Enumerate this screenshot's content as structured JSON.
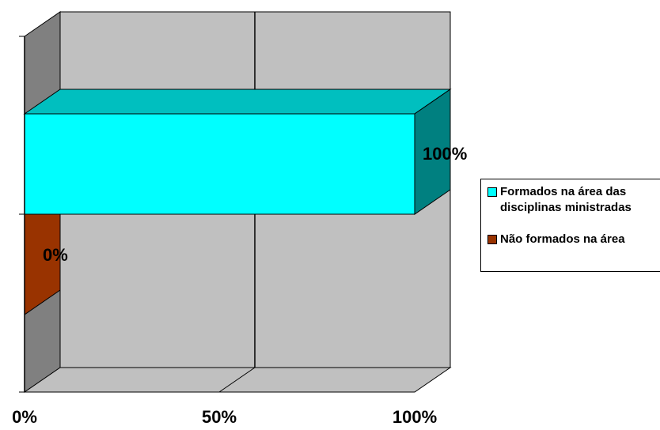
{
  "chart_data": {
    "type": "bar",
    "orientation": "horizontal",
    "three_d": true,
    "categories": [
      "Formados na área das disciplinas ministradas",
      "Não formados na área"
    ],
    "values": [
      100,
      0
    ],
    "value_unit": "%",
    "data_labels": [
      "100%",
      "0%"
    ],
    "xlim": [
      0,
      100
    ],
    "xticks": [
      "0%",
      "50%",
      "100%"
    ],
    "grid": true,
    "legend": "right",
    "title": "",
    "xlabel": "",
    "ylabel": "",
    "series": [
      {
        "name": "Formados na área das\ndisciplinas ministradas",
        "value": 100,
        "label": "100%",
        "color": "#00ffff"
      },
      {
        "name": "Não formados na área",
        "value": 0,
        "label": "0%",
        "color": "#993300"
      }
    ]
  },
  "colors": {
    "back_wall": "#c0c0c0",
    "side_wall": "#808080",
    "floor": "#c0c0c0"
  }
}
